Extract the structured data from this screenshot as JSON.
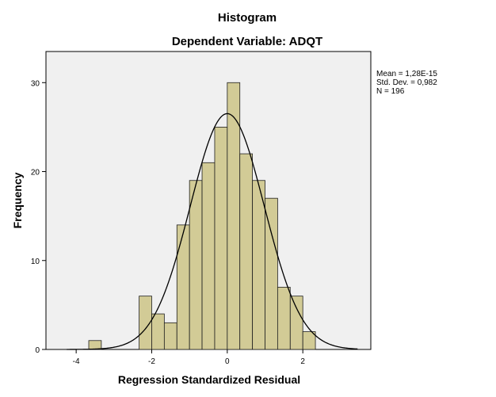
{
  "chart_data": {
    "type": "bar",
    "title": "Histogram",
    "subtitle": "Dependent Variable: ADQT",
    "xlabel": "Regression Standardized Residual",
    "ylabel": "Frequency",
    "xlim": [
      -4.8,
      3.8
    ],
    "ylim": [
      0,
      33.5
    ],
    "xticks": [
      -4,
      -2,
      0,
      2
    ],
    "xtick_labels": [
      "-4",
      "-2",
      "0",
      "2"
    ],
    "yticks": [
      0,
      10,
      20,
      30
    ],
    "ytick_labels": [
      "0",
      "10",
      "20",
      "30"
    ],
    "bin_width": 0.333,
    "bins": [
      {
        "start": -3.667,
        "value": 1
      },
      {
        "start": -2.333,
        "value": 6
      },
      {
        "start": -2.0,
        "value": 4
      },
      {
        "start": -1.667,
        "value": 3
      },
      {
        "start": -1.333,
        "value": 14
      },
      {
        "start": -1.0,
        "value": 19
      },
      {
        "start": -0.667,
        "value": 21
      },
      {
        "start": -0.333,
        "value": 25
      },
      {
        "start": 0.0,
        "value": 30
      },
      {
        "start": 0.333,
        "value": 22
      },
      {
        "start": 0.667,
        "value": 19
      },
      {
        "start": 1.0,
        "value": 17
      },
      {
        "start": 1.333,
        "value": 7
      },
      {
        "start": 1.667,
        "value": 6
      },
      {
        "start": 2.0,
        "value": 2
      }
    ],
    "normal_curve": {
      "mean": 0.0,
      "std": 0.982,
      "n": 196
    },
    "stats": {
      "mean": "Mean = 1,28E-15",
      "std": "Std. Dev. = 0,982",
      "n": "N = 196"
    },
    "grid": false,
    "legend": "none",
    "colors": {
      "bar_fill": "#d2cb96",
      "bar_stroke": "#1f1f1f",
      "plot_bg": "#f0f0f0",
      "curve": "#000000"
    }
  }
}
